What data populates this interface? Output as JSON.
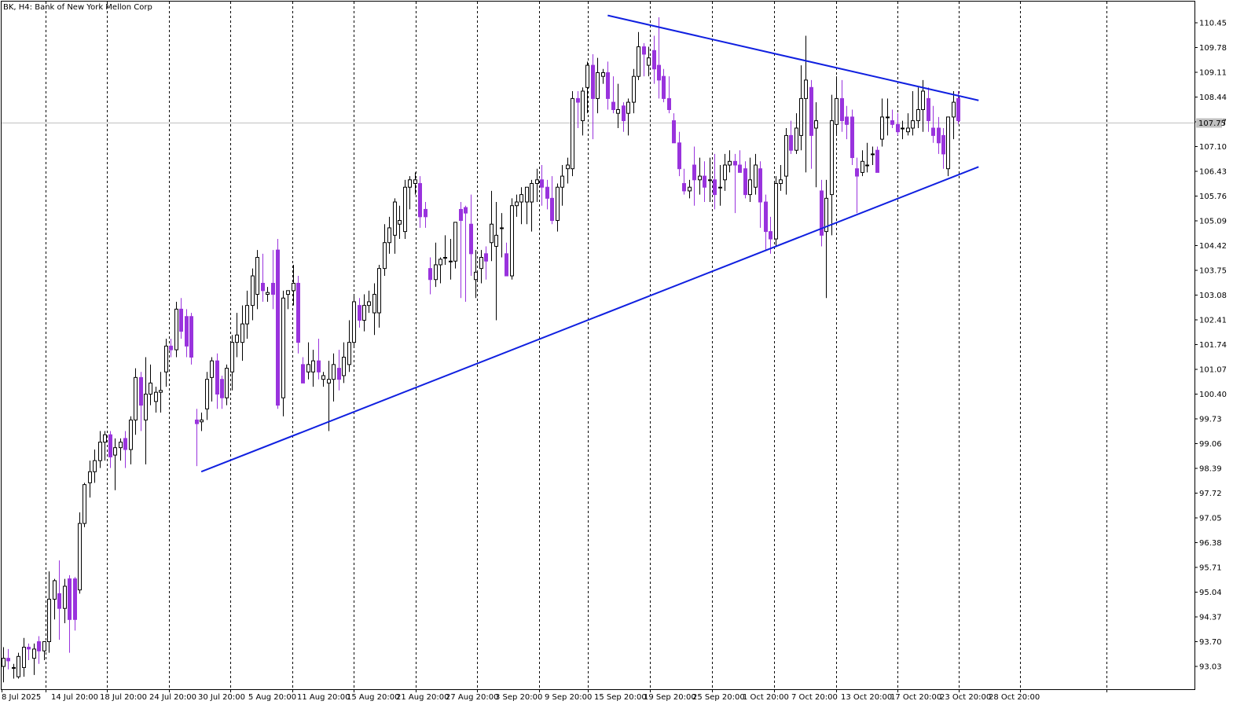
{
  "window": {
    "title": "BK, H4:  Bank of New York Mellon Corp"
  },
  "colors": {
    "background": "#ffffff",
    "frame": "#000000",
    "grid": "#000000",
    "bull_candle": "#ffffff",
    "bear_candle": "#9933dd",
    "wick": "#000000",
    "trendline": "#1020e0",
    "current_price_line": "#c0c0c0",
    "current_price_box": "#c0c0c0"
  },
  "chart_data": {
    "type": "candlestick",
    "title": "BK, H4:  Bank of New York Mellon Corp",
    "symbol": "BK",
    "timeframe": "H4",
    "instrument": "Bank of New York Mellon Corp",
    "grid": true,
    "grid_style": "vertical dashed",
    "ylim": [
      92.55,
      110.85
    ],
    "y_ticks": [
      "110.45",
      "109.78",
      "109.11",
      "108.44",
      "107.77",
      "107.10",
      "106.43",
      "105.76",
      "105.09",
      "104.42",
      "103.75",
      "103.08",
      "102.41",
      "101.74",
      "101.07",
      "100.40",
      "99.73",
      "99.06",
      "98.39",
      "97.72",
      "97.05",
      "96.38",
      "95.71",
      "95.04",
      "94.37",
      "93.70",
      "93.03"
    ],
    "x_labels": [
      "8 Jul 2025",
      "14 Jul 20:00",
      "18 Jul 20:00",
      "24 Jul 20:00",
      "30 Jul 20:00",
      "5 Aug 20:00",
      "11 Aug 20:00",
      "15 Aug 20:00",
      "21 Aug 20:00",
      "27 Aug 20:00",
      "3 Sep 20:00",
      "9 Sep 20:00",
      "15 Sep 20:00",
      "19 Sep 20:00",
      "25 Sep 20:00",
      "1 Oct 20:00",
      "7 Oct 20:00",
      "13 Oct 20:00",
      "17 Oct 20:00",
      "23 Oct 20:00",
      "28 Oct 20:00"
    ],
    "current_price": "107.75",
    "candles": [
      {
        "o": 93.03,
        "h": 93.55,
        "l": 92.6,
        "c": 93.25
      },
      {
        "o": 93.25,
        "h": 93.5,
        "l": 92.95,
        "c": 93.18
      },
      {
        "o": 93.0,
        "h": 93.1,
        "l": 92.7,
        "c": 93.0
      },
      {
        "o": 92.75,
        "h": 93.4,
        "l": 92.7,
        "c": 93.3
      },
      {
        "o": 93.0,
        "h": 93.8,
        "l": 92.75,
        "c": 93.55
      },
      {
        "o": 93.55,
        "h": 93.65,
        "l": 93.2,
        "c": 93.5
      },
      {
        "o": 93.25,
        "h": 93.65,
        "l": 92.8,
        "c": 93.5
      },
      {
        "o": 93.7,
        "h": 93.85,
        "l": 93.1,
        "c": 93.45
      },
      {
        "o": 93.45,
        "h": 93.7,
        "l": 93.2,
        "c": 93.7
      },
      {
        "o": 93.7,
        "h": 95.6,
        "l": 93.4,
        "c": 94.85
      },
      {
        "o": 94.85,
        "h": 95.4,
        "l": 94.3,
        "c": 95.35
      },
      {
        "o": 95.0,
        "h": 95.9,
        "l": 93.75,
        "c": 94.6
      },
      {
        "o": 94.6,
        "h": 95.4,
        "l": 94.2,
        "c": 95.2
      },
      {
        "o": 95.4,
        "h": 95.5,
        "l": 93.4,
        "c": 94.3
      },
      {
        "o": 95.4,
        "h": 95.45,
        "l": 94.0,
        "c": 94.3
      },
      {
        "o": 95.1,
        "h": 97.2,
        "l": 95.0,
        "c": 96.9
      },
      {
        "o": 96.9,
        "h": 98.0,
        "l": 96.8,
        "c": 97.95
      },
      {
        "o": 98.0,
        "h": 98.6,
        "l": 97.6,
        "c": 98.3
      },
      {
        "o": 98.3,
        "h": 98.9,
        "l": 98.0,
        "c": 98.6
      },
      {
        "o": 98.6,
        "h": 99.4,
        "l": 98.4,
        "c": 99.1
      },
      {
        "o": 99.1,
        "h": 99.4,
        "l": 98.6,
        "c": 99.3
      },
      {
        "o": 99.3,
        "h": 99.4,
        "l": 98.4,
        "c": 98.7
      },
      {
        "o": 98.75,
        "h": 99.2,
        "l": 97.8,
        "c": 98.95
      },
      {
        "o": 98.95,
        "h": 99.2,
        "l": 98.6,
        "c": 99.1
      },
      {
        "o": 99.2,
        "h": 99.4,
        "l": 98.4,
        "c": 98.9
      },
      {
        "o": 98.9,
        "h": 99.8,
        "l": 98.5,
        "c": 99.7
      },
      {
        "o": 99.7,
        "h": 101.1,
        "l": 99.3,
        "c": 100.85
      },
      {
        "o": 100.85,
        "h": 101.0,
        "l": 99.4,
        "c": 100.1
      },
      {
        "o": 99.7,
        "h": 101.4,
        "l": 98.5,
        "c": 100.4
      },
      {
        "o": 100.4,
        "h": 101.2,
        "l": 100.1,
        "c": 100.7
      },
      {
        "o": 100.2,
        "h": 100.6,
        "l": 99.9,
        "c": 100.45
      },
      {
        "o": 100.45,
        "h": 101.0,
        "l": 99.9,
        "c": 100.5
      },
      {
        "o": 101.0,
        "h": 101.9,
        "l": 100.6,
        "c": 101.7
      },
      {
        "o": 101.7,
        "h": 101.9,
        "l": 101.4,
        "c": 101.6
      },
      {
        "o": 101.6,
        "h": 102.9,
        "l": 101.4,
        "c": 102.7
      },
      {
        "o": 102.7,
        "h": 103.0,
        "l": 101.9,
        "c": 102.1
      },
      {
        "o": 102.5,
        "h": 102.7,
        "l": 101.4,
        "c": 101.7
      },
      {
        "o": 102.5,
        "h": 102.6,
        "l": 101.2,
        "c": 101.4
      },
      {
        "o": 99.7,
        "h": 100.0,
        "l": 98.45,
        "c": 99.6
      },
      {
        "o": 99.65,
        "h": 99.9,
        "l": 99.4,
        "c": 99.7
      },
      {
        "o": 100.0,
        "h": 101.0,
        "l": 99.7,
        "c": 100.8
      },
      {
        "o": 100.85,
        "h": 101.4,
        "l": 100.2,
        "c": 101.3
      },
      {
        "o": 101.3,
        "h": 101.5,
        "l": 100.0,
        "c": 100.4
      },
      {
        "o": 100.8,
        "h": 100.9,
        "l": 100.0,
        "c": 100.3
      },
      {
        "o": 100.3,
        "h": 101.2,
        "l": 100.1,
        "c": 101.1
      },
      {
        "o": 101.0,
        "h": 102.0,
        "l": 100.5,
        "c": 101.8
      },
      {
        "o": 101.8,
        "h": 102.6,
        "l": 101.4,
        "c": 102.0
      },
      {
        "o": 101.8,
        "h": 102.8,
        "l": 101.3,
        "c": 102.3
      },
      {
        "o": 102.3,
        "h": 103.2,
        "l": 101.9,
        "c": 102.8
      },
      {
        "o": 102.8,
        "h": 103.8,
        "l": 102.4,
        "c": 103.6
      },
      {
        "o": 103.1,
        "h": 104.3,
        "l": 102.7,
        "c": 104.1
      },
      {
        "o": 103.4,
        "h": 104.2,
        "l": 102.9,
        "c": 103.2
      },
      {
        "o": 103.1,
        "h": 103.3,
        "l": 102.9,
        "c": 103.15
      },
      {
        "o": 103.4,
        "h": 104.3,
        "l": 102.7,
        "c": 103.1
      },
      {
        "o": 104.3,
        "h": 104.6,
        "l": 100.0,
        "c": 100.1
      },
      {
        "o": 100.3,
        "h": 103.2,
        "l": 99.8,
        "c": 103.0
      },
      {
        "o": 103.1,
        "h": 103.2,
        "l": 102.7,
        "c": 103.2
      },
      {
        "o": 103.2,
        "h": 103.9,
        "l": 102.8,
        "c": 103.4
      },
      {
        "o": 103.4,
        "h": 103.6,
        "l": 101.5,
        "c": 101.8
      },
      {
        "o": 101.2,
        "h": 101.4,
        "l": 100.8,
        "c": 100.7
      },
      {
        "o": 101.0,
        "h": 101.8,
        "l": 100.8,
        "c": 101.2
      },
      {
        "o": 101.0,
        "h": 101.6,
        "l": 100.6,
        "c": 101.3
      },
      {
        "o": 101.3,
        "h": 101.9,
        "l": 100.8,
        "c": 101.0
      },
      {
        "o": 100.8,
        "h": 101.0,
        "l": 100.6,
        "c": 100.9
      },
      {
        "o": 100.7,
        "h": 101.3,
        "l": 99.4,
        "c": 100.8
      },
      {
        "o": 100.8,
        "h": 101.5,
        "l": 100.2,
        "c": 101.2
      },
      {
        "o": 101.1,
        "h": 101.6,
        "l": 100.5,
        "c": 100.8
      },
      {
        "o": 100.9,
        "h": 101.8,
        "l": 100.7,
        "c": 101.4
      },
      {
        "o": 101.2,
        "h": 102.4,
        "l": 101.0,
        "c": 101.8
      },
      {
        "o": 101.8,
        "h": 103.1,
        "l": 101.7,
        "c": 102.9
      },
      {
        "o": 102.8,
        "h": 103.0,
        "l": 102.2,
        "c": 102.4
      },
      {
        "o": 102.4,
        "h": 103.1,
        "l": 102.1,
        "c": 102.8
      },
      {
        "o": 102.8,
        "h": 103.2,
        "l": 102.6,
        "c": 102.9
      },
      {
        "o": 102.6,
        "h": 103.4,
        "l": 102.0,
        "c": 103.1
      },
      {
        "o": 102.6,
        "h": 103.9,
        "l": 102.2,
        "c": 103.8
      },
      {
        "o": 103.8,
        "h": 105.0,
        "l": 103.6,
        "c": 104.5
      },
      {
        "o": 104.5,
        "h": 105.2,
        "l": 104.2,
        "c": 104.9
      },
      {
        "o": 104.7,
        "h": 105.7,
        "l": 104.2,
        "c": 105.6
      },
      {
        "o": 105.0,
        "h": 105.5,
        "l": 104.6,
        "c": 105.1
      },
      {
        "o": 104.8,
        "h": 106.2,
        "l": 104.6,
        "c": 106.0
      },
      {
        "o": 106.0,
        "h": 106.3,
        "l": 105.4,
        "c": 106.2
      },
      {
        "o": 106.1,
        "h": 106.4,
        "l": 105.8,
        "c": 106.2
      },
      {
        "o": 106.1,
        "h": 106.3,
        "l": 104.9,
        "c": 105.2
      },
      {
        "o": 105.4,
        "h": 105.6,
        "l": 104.9,
        "c": 105.2
      },
      {
        "o": 103.8,
        "h": 104.1,
        "l": 103.1,
        "c": 103.5
      },
      {
        "o": 103.5,
        "h": 104.5,
        "l": 103.3,
        "c": 103.9
      },
      {
        "o": 103.9,
        "h": 104.1,
        "l": 103.4,
        "c": 104.05
      },
      {
        "o": 104.1,
        "h": 104.7,
        "l": 103.9,
        "c": 104.1
      },
      {
        "o": 104.0,
        "h": 104.6,
        "l": 103.5,
        "c": 104.0
      },
      {
        "o": 104.0,
        "h": 105.0,
        "l": 103.8,
        "c": 105.05
      },
      {
        "o": 105.4,
        "h": 105.6,
        "l": 103.0,
        "c": 105.1
      },
      {
        "o": 105.45,
        "h": 105.5,
        "l": 102.9,
        "c": 105.3
      },
      {
        "o": 105.0,
        "h": 105.8,
        "l": 103.6,
        "c": 104.2
      },
      {
        "o": 103.5,
        "h": 104.3,
        "l": 103.0,
        "c": 103.7
      },
      {
        "o": 103.8,
        "h": 104.3,
        "l": 103.4,
        "c": 104.1
      },
      {
        "o": 104.2,
        "h": 104.4,
        "l": 103.5,
        "c": 104.0
      },
      {
        "o": 104.5,
        "h": 105.9,
        "l": 104.0,
        "c": 105.0
      },
      {
        "o": 104.4,
        "h": 105.6,
        "l": 102.4,
        "c": 104.7
      },
      {
        "o": 104.9,
        "h": 105.3,
        "l": 104.1,
        "c": 104.9
      },
      {
        "o": 104.2,
        "h": 104.5,
        "l": 103.6,
        "c": 103.6
      },
      {
        "o": 103.6,
        "h": 105.7,
        "l": 103.5,
        "c": 105.5
      },
      {
        "o": 105.5,
        "h": 105.8,
        "l": 105.2,
        "c": 105.6
      },
      {
        "o": 105.6,
        "h": 106.0,
        "l": 105.0,
        "c": 105.8
      },
      {
        "o": 105.6,
        "h": 106.0,
        "l": 105.0,
        "c": 106.0
      },
      {
        "o": 105.6,
        "h": 106.2,
        "l": 104.8,
        "c": 106.1
      },
      {
        "o": 106.1,
        "h": 106.5,
        "l": 105.6,
        "c": 106.2
      },
      {
        "o": 106.2,
        "h": 106.6,
        "l": 105.5,
        "c": 106.0
      },
      {
        "o": 106.0,
        "h": 106.2,
        "l": 105.4,
        "c": 105.7
      },
      {
        "o": 105.7,
        "h": 106.3,
        "l": 105.0,
        "c": 105.1
      },
      {
        "o": 105.1,
        "h": 106.1,
        "l": 104.8,
        "c": 106.0
      },
      {
        "o": 106.0,
        "h": 106.6,
        "l": 105.5,
        "c": 106.3
      },
      {
        "o": 106.5,
        "h": 106.8,
        "l": 106.1,
        "c": 106.6
      },
      {
        "o": 106.5,
        "h": 108.6,
        "l": 106.3,
        "c": 108.4
      },
      {
        "o": 108.4,
        "h": 108.6,
        "l": 107.6,
        "c": 108.3
      },
      {
        "o": 107.8,
        "h": 108.7,
        "l": 107.4,
        "c": 108.6
      },
      {
        "o": 108.7,
        "h": 109.4,
        "l": 108.0,
        "c": 109.3
      },
      {
        "o": 109.3,
        "h": 109.6,
        "l": 107.3,
        "c": 108.4
      },
      {
        "o": 108.4,
        "h": 109.5,
        "l": 108.0,
        "c": 109.1
      },
      {
        "o": 109.0,
        "h": 109.2,
        "l": 108.8,
        "c": 109.1
      },
      {
        "o": 109.1,
        "h": 109.4,
        "l": 108.1,
        "c": 108.4
      },
      {
        "o": 108.3,
        "h": 109.0,
        "l": 108.0,
        "c": 108.1
      },
      {
        "o": 108.0,
        "h": 108.8,
        "l": 107.6,
        "c": 108.1
      },
      {
        "o": 108.2,
        "h": 108.3,
        "l": 107.5,
        "c": 107.8
      },
      {
        "o": 108.0,
        "h": 108.4,
        "l": 107.4,
        "c": 108.3
      },
      {
        "o": 108.3,
        "h": 109.2,
        "l": 108.0,
        "c": 109.0
      },
      {
        "o": 109.0,
        "h": 110.2,
        "l": 108.9,
        "c": 109.8
      },
      {
        "o": 109.8,
        "h": 109.9,
        "l": 109.0,
        "c": 109.6
      },
      {
        "o": 109.3,
        "h": 109.8,
        "l": 109.0,
        "c": 109.5
      },
      {
        "o": 109.7,
        "h": 110.1,
        "l": 108.8,
        "c": 109.2
      },
      {
        "o": 109.3,
        "h": 110.6,
        "l": 108.4,
        "c": 108.9
      },
      {
        "o": 109.0,
        "h": 109.2,
        "l": 108.3,
        "c": 108.4
      },
      {
        "o": 108.4,
        "h": 109.0,
        "l": 108.0,
        "c": 108.1
      },
      {
        "o": 107.8,
        "h": 108.0,
        "l": 107.2,
        "c": 107.2
      },
      {
        "o": 107.2,
        "h": 107.5,
        "l": 106.3,
        "c": 106.5
      },
      {
        "o": 106.1,
        "h": 106.5,
        "l": 105.8,
        "c": 105.9
      },
      {
        "o": 105.9,
        "h": 106.2,
        "l": 105.7,
        "c": 106.0
      },
      {
        "o": 106.6,
        "h": 107.1,
        "l": 105.5,
        "c": 106.2
      },
      {
        "o": 106.2,
        "h": 106.8,
        "l": 105.8,
        "c": 106.3
      },
      {
        "o": 106.3,
        "h": 106.7,
        "l": 105.6,
        "c": 106.0
      },
      {
        "o": 106.2,
        "h": 106.8,
        "l": 105.6,
        "c": 106.2
      },
      {
        "o": 106.2,
        "h": 106.9,
        "l": 105.4,
        "c": 105.8
      },
      {
        "o": 106.0,
        "h": 106.6,
        "l": 105.5,
        "c": 106.0
      },
      {
        "o": 106.2,
        "h": 106.9,
        "l": 105.9,
        "c": 106.6
      },
      {
        "o": 106.6,
        "h": 107.0,
        "l": 106.4,
        "c": 106.7
      },
      {
        "o": 106.7,
        "h": 106.9,
        "l": 105.3,
        "c": 106.6
      },
      {
        "o": 106.6,
        "h": 107.0,
        "l": 106.4,
        "c": 106.4
      },
      {
        "o": 106.5,
        "h": 106.7,
        "l": 105.7,
        "c": 105.8
      },
      {
        "o": 105.8,
        "h": 106.8,
        "l": 105.6,
        "c": 106.2
      },
      {
        "o": 106.0,
        "h": 106.9,
        "l": 105.8,
        "c": 106.6
      },
      {
        "o": 106.5,
        "h": 106.7,
        "l": 104.9,
        "c": 105.6
      },
      {
        "o": 105.6,
        "h": 105.8,
        "l": 104.3,
        "c": 104.8
      },
      {
        "o": 104.8,
        "h": 105.2,
        "l": 104.2,
        "c": 104.6
      },
      {
        "o": 104.6,
        "h": 106.3,
        "l": 104.4,
        "c": 106.1
      },
      {
        "o": 106.1,
        "h": 106.6,
        "l": 105.9,
        "c": 106.2
      },
      {
        "o": 106.3,
        "h": 107.6,
        "l": 105.8,
        "c": 107.4
      },
      {
        "o": 107.4,
        "h": 107.8,
        "l": 106.9,
        "c": 107.0
      },
      {
        "o": 107.0,
        "h": 108.0,
        "l": 106.9,
        "c": 107.6
      },
      {
        "o": 107.4,
        "h": 109.3,
        "l": 107.0,
        "c": 108.4
      },
      {
        "o": 108.4,
        "h": 110.1,
        "l": 106.4,
        "c": 108.9
      },
      {
        "o": 108.7,
        "h": 108.9,
        "l": 106.5,
        "c": 107.4
      },
      {
        "o": 107.6,
        "h": 108.3,
        "l": 106.0,
        "c": 107.8
      },
      {
        "o": 105.9,
        "h": 106.2,
        "l": 104.4,
        "c": 104.7
      },
      {
        "o": 104.8,
        "h": 106.2,
        "l": 103.0,
        "c": 105.7
      },
      {
        "o": 105.8,
        "h": 108.5,
        "l": 104.7,
        "c": 107.8
      },
      {
        "o": 107.7,
        "h": 109.0,
        "l": 107.4,
        "c": 108.4
      },
      {
        "o": 108.4,
        "h": 108.9,
        "l": 107.5,
        "c": 107.8
      },
      {
        "o": 107.9,
        "h": 108.2,
        "l": 107.3,
        "c": 107.7
      },
      {
        "o": 107.9,
        "h": 108.1,
        "l": 106.6,
        "c": 106.8
      },
      {
        "o": 106.5,
        "h": 106.8,
        "l": 105.3,
        "c": 106.3
      },
      {
        "o": 106.4,
        "h": 107.0,
        "l": 106.3,
        "c": 106.7
      },
      {
        "o": 106.6,
        "h": 107.2,
        "l": 106.4,
        "c": 106.6
      },
      {
        "o": 106.9,
        "h": 107.1,
        "l": 106.6,
        "c": 106.9
      },
      {
        "o": 107.0,
        "h": 107.1,
        "l": 106.4,
        "c": 106.4
      },
      {
        "o": 107.3,
        "h": 108.4,
        "l": 107.1,
        "c": 107.9
      },
      {
        "o": 107.9,
        "h": 108.4,
        "l": 107.4,
        "c": 107.9
      },
      {
        "o": 107.8,
        "h": 108.1,
        "l": 107.6,
        "c": 107.7
      },
      {
        "o": 107.7,
        "h": 108.0,
        "l": 107.4,
        "c": 107.5
      },
      {
        "o": 107.6,
        "h": 107.8,
        "l": 107.3,
        "c": 107.6
      },
      {
        "o": 107.5,
        "h": 108.0,
        "l": 107.4,
        "c": 107.6
      },
      {
        "o": 107.6,
        "h": 108.6,
        "l": 107.4,
        "c": 107.8
      },
      {
        "o": 107.8,
        "h": 108.7,
        "l": 107.6,
        "c": 108.1
      },
      {
        "o": 108.1,
        "h": 108.9,
        "l": 107.5,
        "c": 108.6
      },
      {
        "o": 108.4,
        "h": 108.7,
        "l": 107.5,
        "c": 107.8
      },
      {
        "o": 107.6,
        "h": 108.2,
        "l": 107.2,
        "c": 107.4
      },
      {
        "o": 107.6,
        "h": 107.9,
        "l": 106.9,
        "c": 107.2
      },
      {
        "o": 107.4,
        "h": 107.6,
        "l": 106.5,
        "c": 106.9
      },
      {
        "o": 106.5,
        "h": 107.9,
        "l": 106.3,
        "c": 107.9
      },
      {
        "o": 107.9,
        "h": 108.6,
        "l": 107.3,
        "c": 108.3
      },
      {
        "o": 108.4,
        "h": 108.6,
        "l": 107.7,
        "c": 107.8
      }
    ],
    "trendlines": [
      {
        "from_bar": 39,
        "from_price": 98.3,
        "to_bar": 192,
        "to_price": 106.55
      },
      {
        "from_bar": 119,
        "from_price": 110.65,
        "to_bar": 192,
        "to_price": 108.35
      }
    ]
  }
}
